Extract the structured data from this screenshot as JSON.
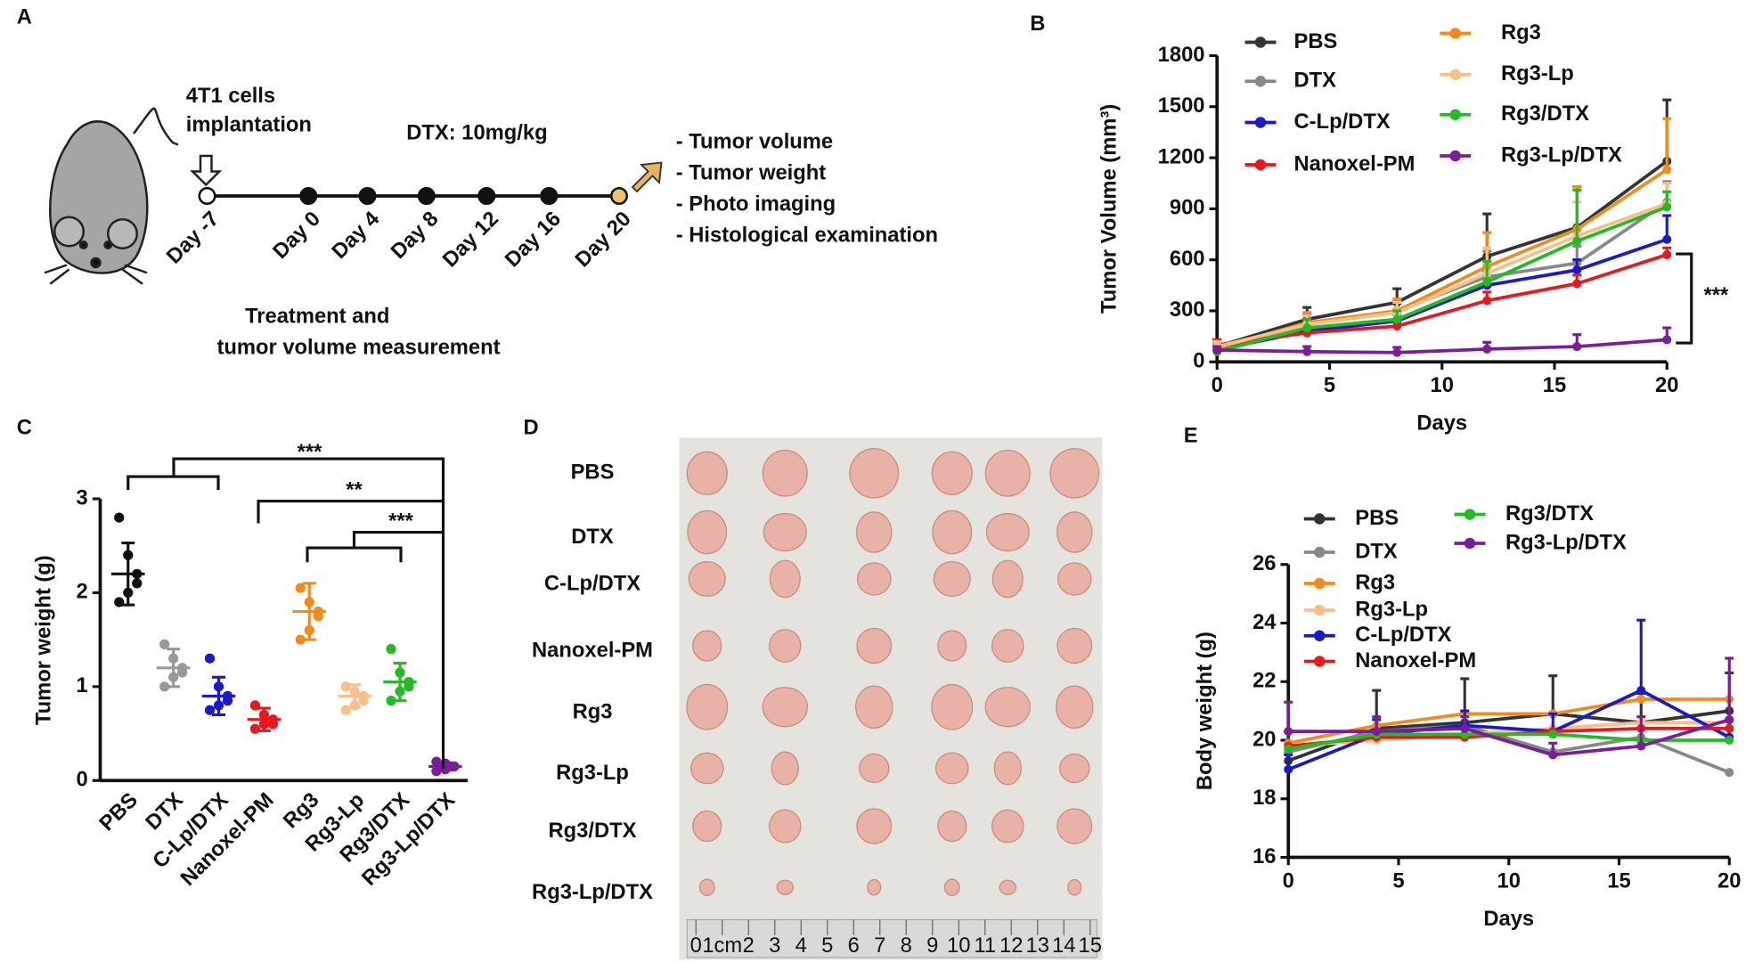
{
  "panel_labels": [
    "A",
    "B",
    "C",
    "D",
    "E"
  ],
  "diagram": {
    "implantation": [
      "4T1 cells",
      "implantation"
    ],
    "dose": "DTX: 10mg/kg",
    "days": [
      "Day -7",
      "Day 0",
      "Day 4",
      "Day 8",
      "Day 12",
      "Day 16",
      "Day 20"
    ],
    "outcomes": [
      "- Tumor volume",
      "- Tumor weight",
      "- Photo imaging",
      "- Histological examination"
    ],
    "caption": [
      "Treatment and",
      "tumor volume measurement"
    ]
  },
  "photo": {
    "rows": [
      "PBS",
      "DTX",
      "C-Lp/DTX",
      "Nanoxel-PM",
      "Rg3",
      "Rg3-Lp",
      "Rg3/DTX",
      "Rg3-Lp/DTX"
    ],
    "ruler": [
      "0",
      "1cm",
      "2",
      "3",
      "4",
      "5",
      "6",
      "7",
      "8",
      "9",
      "10",
      "11",
      "12",
      "13",
      "14",
      "15"
    ]
  },
  "chart_data": [
    {
      "type": "line",
      "xlabel": "Days",
      "ylabel": "Tumor Volume (mm³)",
      "x": [
        0,
        4,
        8,
        12,
        16,
        20
      ],
      "xlim": [
        0,
        20
      ],
      "xticks": [
        0,
        5,
        10,
        15,
        20
      ],
      "ylim": [
        0,
        1800
      ],
      "yticks": [
        0,
        300,
        600,
        900,
        1200,
        1500,
        1800
      ],
      "annotation": "***",
      "series": [
        {
          "name": "PBS",
          "color": "#333333",
          "values": [
            90,
            250,
            350,
            620,
            790,
            1180
          ],
          "errors": [
            40,
            70,
            80,
            250,
            240,
            360
          ]
        },
        {
          "name": "DTX",
          "color": "#888888",
          "values": [
            80,
            220,
            300,
            500,
            580,
            940
          ],
          "errors": [
            30,
            60,
            60,
            150,
            100,
            120
          ]
        },
        {
          "name": "C-Lp/DTX",
          "color": "#1a1ac8",
          "values": [
            70,
            180,
            240,
            450,
            540,
            720
          ],
          "errors": [
            20,
            40,
            40,
            80,
            60,
            140
          ]
        },
        {
          "name": "Nanoxel-PM",
          "color": "#e8191e",
          "values": [
            100,
            170,
            210,
            360,
            460,
            630
          ],
          "errors": [
            30,
            30,
            30,
            50,
            50,
            40
          ]
        },
        {
          "name": "Rg3",
          "color": "#f38b1c",
          "values": [
            80,
            230,
            300,
            560,
            780,
            1130
          ],
          "errors": [
            30,
            60,
            70,
            200,
            250,
            300
          ]
        },
        {
          "name": "Rg3-Lp",
          "color": "#f7c08b",
          "values": [
            90,
            220,
            290,
            520,
            740,
            930
          ],
          "errors": [
            30,
            50,
            60,
            150,
            200,
            120
          ]
        },
        {
          "name": "Rg3/DTX",
          "color": "#22bb22",
          "values": [
            60,
            200,
            250,
            470,
            710,
            910
          ],
          "errors": [
            20,
            50,
            50,
            120,
            300,
            90
          ]
        },
        {
          "name": "Rg3-Lp/DTX",
          "color": "#7a1d9c",
          "values": [
            70,
            60,
            55,
            75,
            90,
            130
          ],
          "errors": [
            20,
            30,
            30,
            40,
            70,
            70
          ]
        }
      ]
    },
    {
      "type": "dot",
      "ylabel": "Tumor weight (g)",
      "ylim": [
        0,
        3
      ],
      "yticks": [
        0,
        1,
        2,
        3
      ],
      "annotations": [
        "***",
        "**",
        "***"
      ],
      "categories": [
        "PBS",
        "DTX",
        "C-Lp/DTX",
        "Nanoxel-PM",
        "Rg3",
        "Rg3-Lp",
        "Rg3/DTX",
        "Rg3-Lp/DTX"
      ],
      "colors": [
        "#111111",
        "#999999",
        "#1a1ac8",
        "#e8191e",
        "#f38b1c",
        "#f7c08b",
        "#22bb22",
        "#7a1d9c"
      ],
      "points": [
        [
          2.8,
          2.4,
          2.2,
          2.1,
          2.0,
          1.9
        ],
        [
          1.45,
          1.3,
          1.2,
          1.15,
          1.1,
          1.0
        ],
        [
          1.3,
          1.0,
          0.9,
          0.85,
          0.8,
          0.75
        ],
        [
          0.8,
          0.7,
          0.65,
          0.6,
          0.6,
          0.55
        ],
        [
          2.05,
          1.9,
          1.8,
          1.75,
          1.6,
          1.5
        ],
        [
          1.0,
          0.95,
          0.9,
          0.85,
          0.8,
          0.75
        ],
        [
          1.4,
          1.15,
          1.05,
          1.0,
          0.95,
          0.85
        ],
        [
          0.2,
          0.18,
          0.15,
          0.15,
          0.12,
          0.1
        ]
      ],
      "means": [
        2.2,
        1.2,
        0.9,
        0.65,
        1.8,
        0.9,
        1.05,
        0.15
      ],
      "sd": [
        0.33,
        0.2,
        0.2,
        0.12,
        0.3,
        0.12,
        0.2,
        0.04
      ]
    },
    {
      "type": "line",
      "xlabel": "Days",
      "ylabel": "Body weight (g)",
      "x": [
        0,
        4,
        8,
        12,
        16,
        20
      ],
      "xlim": [
        0,
        20
      ],
      "xticks": [
        0,
        5,
        10,
        15,
        20
      ],
      "ylim": [
        16,
        26
      ],
      "yticks": [
        16,
        18,
        20,
        22,
        24,
        26
      ],
      "series": [
        {
          "name": "PBS",
          "color": "#333333",
          "values": [
            19.3,
            20.4,
            20.6,
            20.9,
            20.6,
            21.0
          ],
          "errors": [
            1.0,
            1.3,
            1.5,
            1.3,
            1.0,
            1.3
          ]
        },
        {
          "name": "DTX",
          "color": "#888888",
          "values": [
            19.6,
            20.3,
            20.5,
            19.6,
            20.1,
            18.9
          ]
        },
        {
          "name": "Rg3",
          "color": "#f38b1c",
          "values": [
            19.9,
            20.5,
            20.9,
            20.9,
            21.4,
            21.4
          ]
        },
        {
          "name": "Rg3-Lp",
          "color": "#f7c08b",
          "values": [
            19.8,
            20.0,
            20.2,
            20.4,
            20.6,
            20.6
          ]
        },
        {
          "name": "C-Lp/DTX",
          "color": "#1a1ac8",
          "values": [
            19.0,
            20.2,
            20.5,
            20.3,
            21.7,
            20.1
          ],
          "errors": [
            0.5,
            0.5,
            0.5,
            0.6,
            2.4,
            0.6
          ]
        },
        {
          "name": "Nanoxel-PM",
          "color": "#e8191e",
          "values": [
            19.8,
            20.1,
            20.1,
            20.3,
            20.4,
            20.4
          ]
        },
        {
          "name": "Rg3/DTX",
          "color": "#22bb22",
          "values": [
            19.7,
            20.2,
            20.2,
            20.2,
            20.0,
            20.0
          ]
        },
        {
          "name": "Rg3-Lp/DTX",
          "color": "#7a1d9c",
          "values": [
            20.3,
            20.3,
            20.4,
            19.5,
            19.8,
            20.7
          ],
          "errors": [
            1.0,
            0.5,
            0.4,
            0.4,
            1.0,
            2.1
          ]
        }
      ]
    }
  ]
}
